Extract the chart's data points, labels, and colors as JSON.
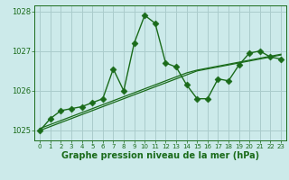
{
  "xlabel": "Graphe pression niveau de la mer (hPa)",
  "bg_color": "#cceaea",
  "grid_color": "#aacccc",
  "line_color": "#1a6b1a",
  "hours": [
    0,
    1,
    2,
    3,
    4,
    5,
    6,
    7,
    8,
    9,
    10,
    11,
    12,
    13,
    14,
    15,
    16,
    17,
    18,
    19,
    20,
    21,
    22,
    23
  ],
  "pressure_jagged": [
    1025.0,
    1025.3,
    1025.5,
    1025.55,
    1025.6,
    1025.7,
    1025.8,
    1026.55,
    1026.0,
    1027.2,
    1027.9,
    1027.7,
    1026.7,
    1026.6,
    1026.15,
    1025.8,
    1025.8,
    1026.3,
    1026.25,
    1026.65,
    1026.95,
    1027.0,
    1026.85,
    1026.8
  ],
  "pressure_smooth1": [
    1025.0,
    1025.1,
    1025.2,
    1025.3,
    1025.4,
    1025.5,
    1025.6,
    1025.7,
    1025.8,
    1025.9,
    1026.0,
    1026.1,
    1026.2,
    1026.3,
    1026.4,
    1026.5,
    1026.55,
    1026.6,
    1026.65,
    1026.7,
    1026.75,
    1026.8,
    1026.85,
    1026.9
  ],
  "pressure_smooth2": [
    1025.05,
    1025.15,
    1025.25,
    1025.35,
    1025.45,
    1025.55,
    1025.65,
    1025.75,
    1025.85,
    1025.95,
    1026.05,
    1026.15,
    1026.25,
    1026.35,
    1026.45,
    1026.52,
    1026.57,
    1026.62,
    1026.67,
    1026.72,
    1026.77,
    1026.82,
    1026.87,
    1026.92
  ],
  "ylim_min": 1024.75,
  "ylim_max": 1028.15,
  "yticks": [
    1025,
    1026,
    1027,
    1028
  ],
  "xlabel_fontsize": 7,
  "tick_fontsize": 6,
  "line_width": 1.0,
  "marker_size": 3.5,
  "marker_style": "D"
}
